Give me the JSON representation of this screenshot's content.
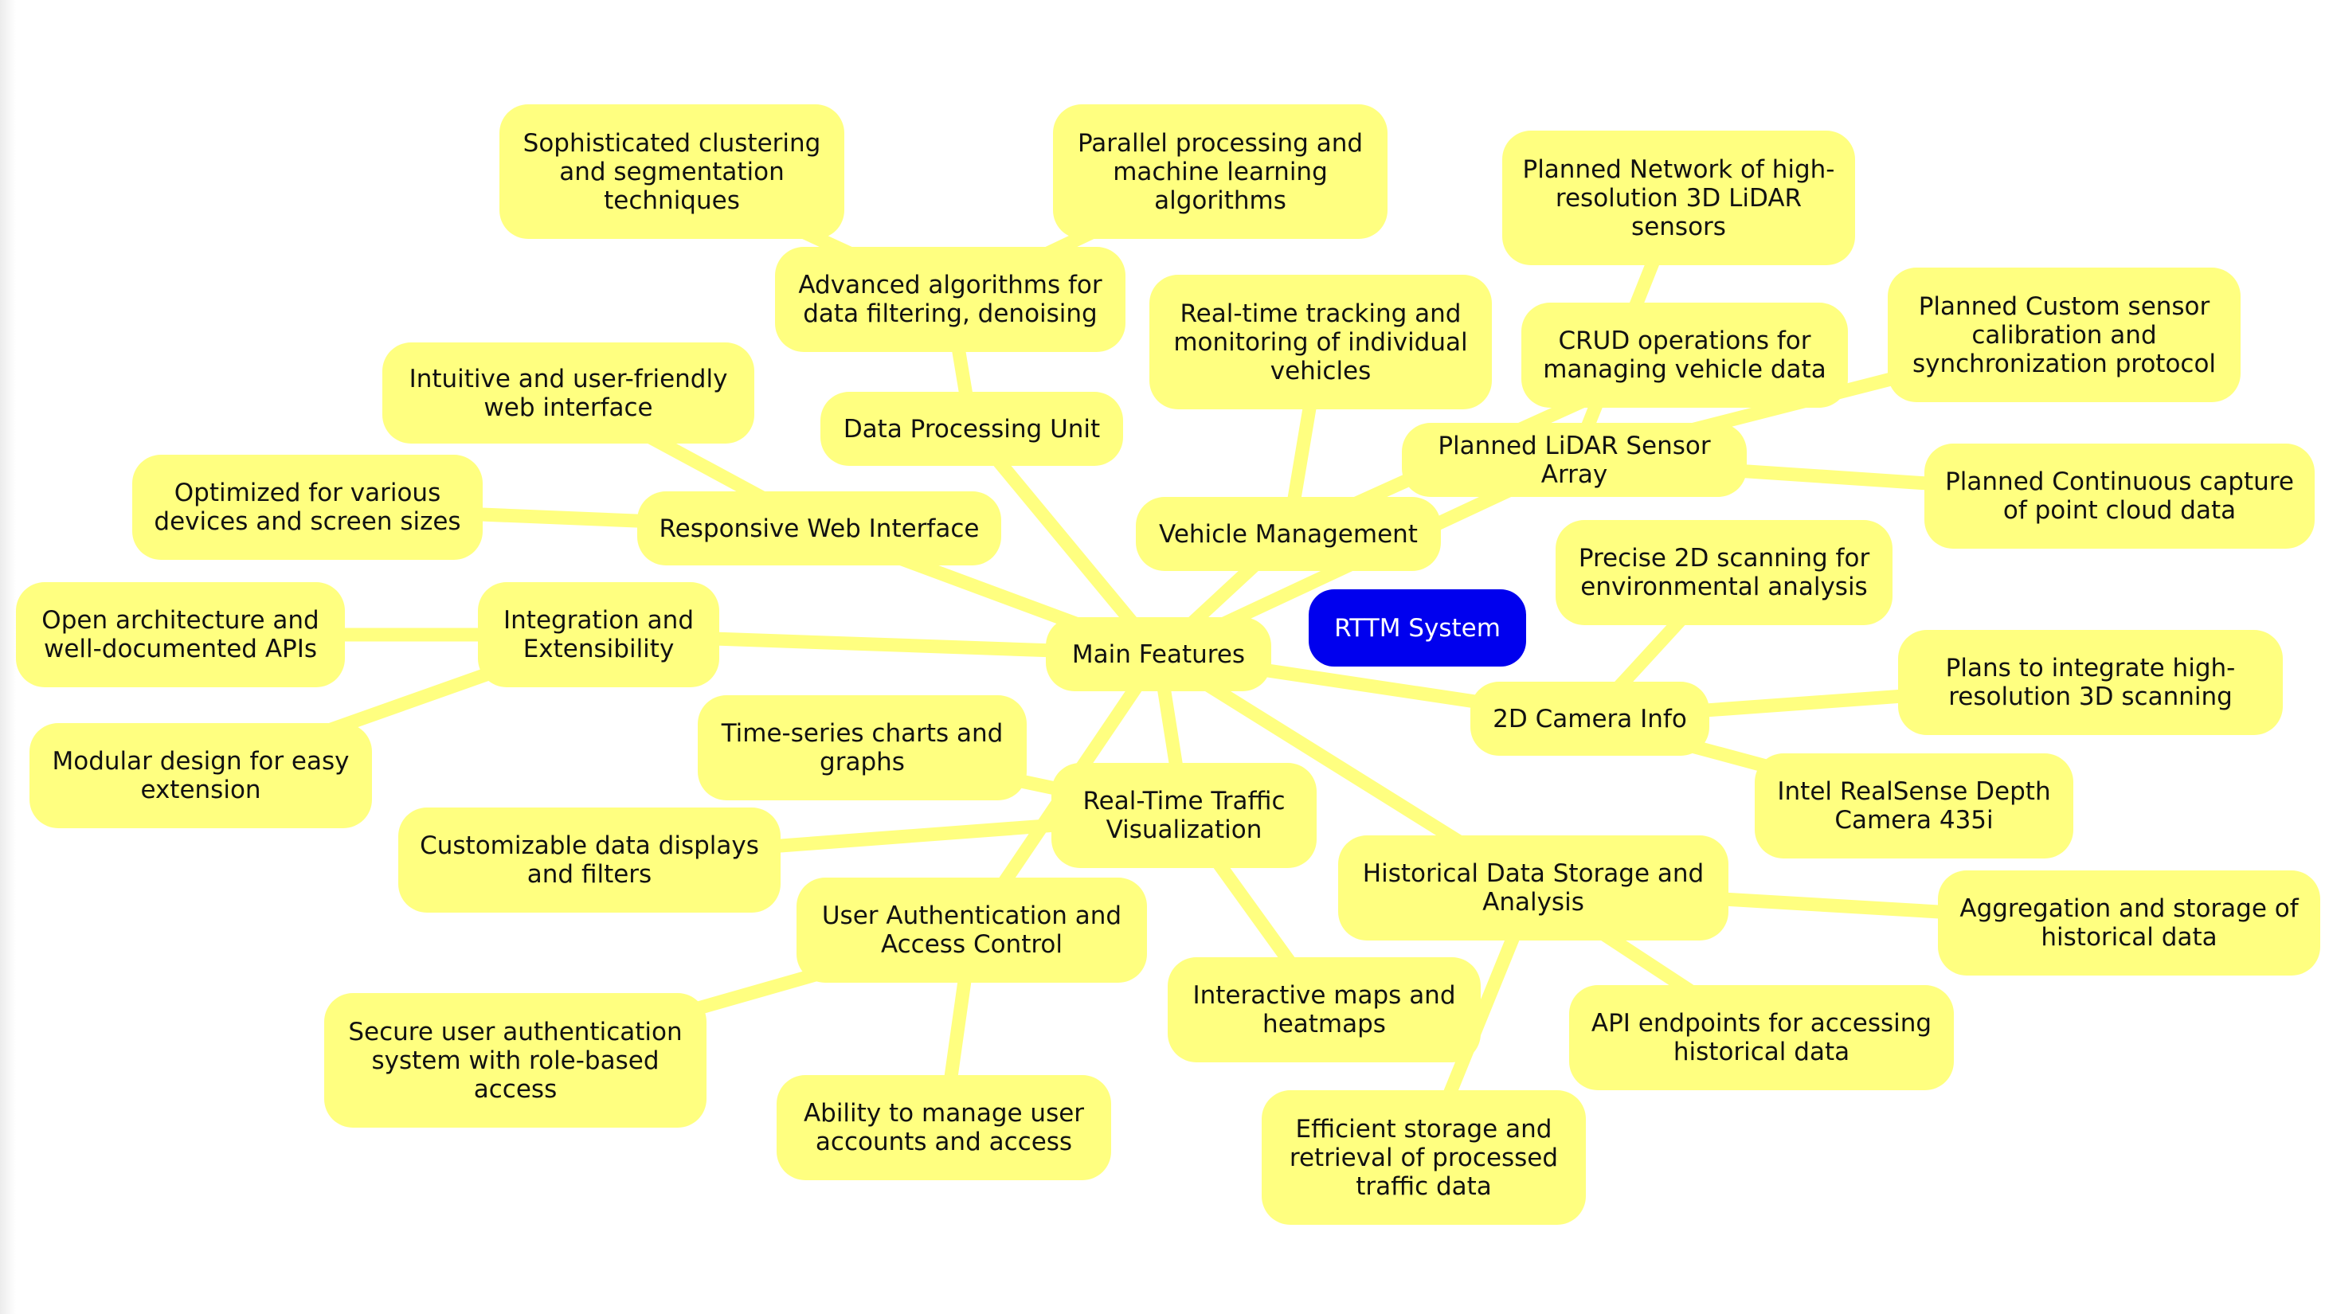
{
  "colors": {
    "node_fill": "#ffff80",
    "edge": "#ffff80",
    "root_fill": "#0000ee",
    "root_text": "#ffffff",
    "text": "#111111"
  },
  "root": "RTTM System",
  "hub": "Main Features",
  "branches": [
    {
      "label": "Data Processing Unit",
      "children": [
        "Advanced algorithms for data filtering, denoising"
      ],
      "grandchildren": [
        "Sophisticated clustering and segmentation techniques",
        "Parallel processing and machine learning algorithms"
      ]
    },
    {
      "label": "Responsive Web Interface",
      "children": [
        "Intuitive and user-friendly web interface",
        "Optimized for various devices and screen sizes"
      ]
    },
    {
      "label": "Integration and Extensibility",
      "children": [
        "Open architecture and well-documented APIs",
        "Modular design for easy extension"
      ]
    },
    {
      "label": "Real-Time Traffic Visualization",
      "children": [
        "Time-series charts and graphs",
        "Customizable data displays and filters",
        "Interactive maps and heatmaps"
      ]
    },
    {
      "label": "User Authentication and Access Control",
      "children": [
        "Secure user authentication system with role-based access",
        "Ability to manage user accounts and access"
      ]
    },
    {
      "label": "Historical Data Storage and Analysis",
      "children": [
        "Aggregation and storage of historical data",
        "API endpoints for accessing historical data",
        "Efficient storage and retrieval of processed traffic data"
      ]
    },
    {
      "label": "2D Camera Info",
      "children": [
        "Precise 2D scanning for environmental analysis",
        "Plans to integrate high-resolution 3D scanning",
        "Intel RealSense Depth Camera 435i"
      ]
    },
    {
      "label": "Vehicle Management",
      "children": [
        "Real-time tracking and monitoring of individual vehicles",
        "CRUD operations for managing vehicle data"
      ]
    },
    {
      "label": "Planned LiDAR Sensor Array",
      "children": [
        "Planned Network of high-resolution 3D LiDAR sensors",
        "Planned Custom sensor calibration and synchronization protocol",
        "Planned Continuous capture of point cloud data"
      ]
    }
  ]
}
